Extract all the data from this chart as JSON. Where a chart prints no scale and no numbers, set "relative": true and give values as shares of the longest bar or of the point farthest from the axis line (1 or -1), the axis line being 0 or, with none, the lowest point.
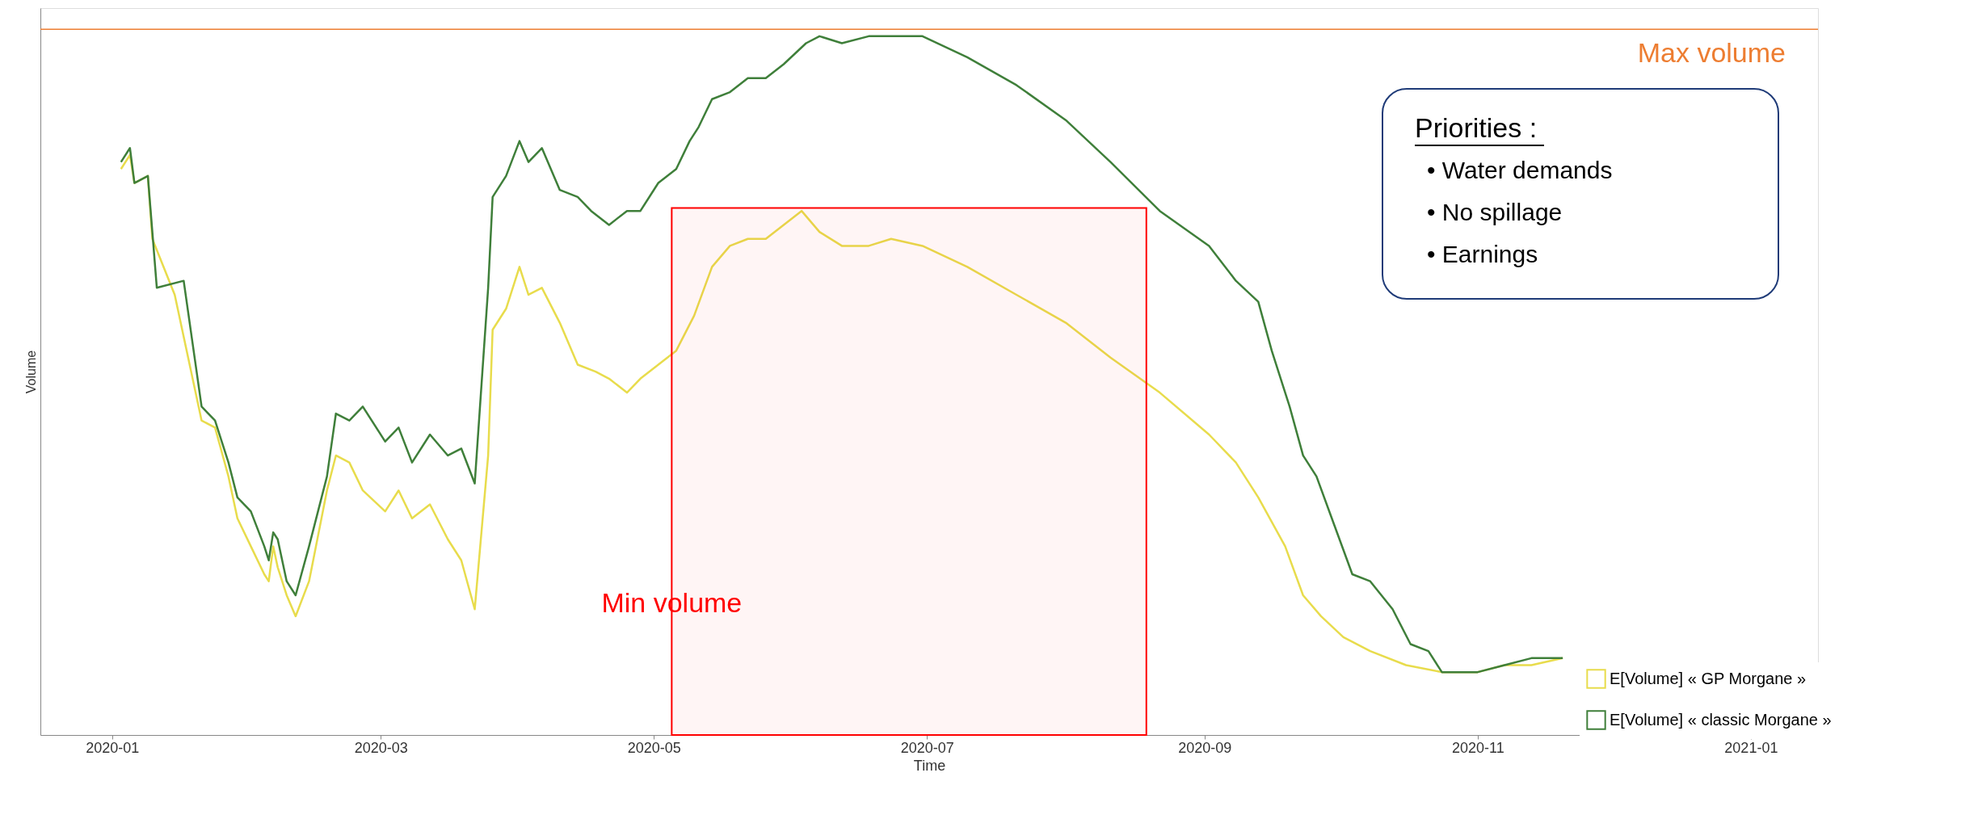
{
  "chart_data": {
    "type": "line",
    "xlabel": "Time",
    "ylabel": "Volume",
    "relative": true,
    "xlim": [
      "2019-12-16",
      "2021-01-16"
    ],
    "xticks": [
      "2020-01",
      "2020-03",
      "2020-05",
      "2020-07",
      "2020-09",
      "2020-11",
      "2021-01"
    ],
    "legend": "bottom right",
    "grid": false,
    "marker": "none",
    "line_style": "solid",
    "series": [
      {
        "name": "E[Volume] « GP Morgane »",
        "color": "#e8dc4c",
        "x": [
          "2020-01-03",
          "2020-01-05",
          "2020-01-06",
          "2020-01-09",
          "2020-01-10",
          "2020-01-15",
          "2020-01-21",
          "2020-01-24",
          "2020-01-27",
          "2020-01-29",
          "2020-02-01",
          "2020-02-04",
          "2020-02-05",
          "2020-02-06",
          "2020-02-07",
          "2020-02-09",
          "2020-02-11",
          "2020-02-14",
          "2020-02-18",
          "2020-02-20",
          "2020-02-23",
          "2020-02-26",
          "2020-03-02",
          "2020-03-05",
          "2020-03-08",
          "2020-03-12",
          "2020-03-16",
          "2020-03-19",
          "2020-03-22",
          "2020-03-25",
          "2020-03-26",
          "2020-03-29",
          "2020-04-01",
          "2020-04-03",
          "2020-04-06",
          "2020-04-10",
          "2020-04-14",
          "2020-04-18",
          "2020-04-21",
          "2020-04-25",
          "2020-04-28",
          "2020-05-02",
          "2020-05-06",
          "2020-05-10",
          "2020-05-14",
          "2020-05-18",
          "2020-05-22",
          "2020-05-26",
          "2020-05-30",
          "2020-06-03",
          "2020-06-07",
          "2020-06-12",
          "2020-06-18",
          "2020-06-23",
          "2020-06-30",
          "2020-07-10",
          "2020-07-21",
          "2020-08-01",
          "2020-08-11",
          "2020-08-22",
          "2020-09-02",
          "2020-09-08",
          "2020-09-13",
          "2020-09-19",
          "2020-09-23",
          "2020-09-27",
          "2020-10-02",
          "2020-10-08",
          "2020-10-16",
          "2020-10-24",
          "2020-11-01",
          "2020-11-07",
          "2020-11-13",
          "2020-11-20"
        ],
        "values": [
          0.81,
          0.83,
          0.79,
          0.8,
          0.71,
          0.63,
          0.45,
          0.44,
          0.37,
          0.31,
          0.27,
          0.23,
          0.22,
          0.27,
          0.24,
          0.2,
          0.17,
          0.22,
          0.35,
          0.4,
          0.39,
          0.35,
          0.32,
          0.35,
          0.31,
          0.33,
          0.28,
          0.25,
          0.18,
          0.4,
          0.58,
          0.61,
          0.67,
          0.63,
          0.64,
          0.59,
          0.53,
          0.52,
          0.51,
          0.49,
          0.51,
          0.53,
          0.55,
          0.6,
          0.67,
          0.7,
          0.71,
          0.71,
          0.73,
          0.75,
          0.72,
          0.7,
          0.7,
          0.71,
          0.7,
          0.67,
          0.63,
          0.59,
          0.54,
          0.49,
          0.43,
          0.39,
          0.34,
          0.27,
          0.2,
          0.17,
          0.14,
          0.12,
          0.1,
          0.09,
          0.09,
          0.1,
          0.1,
          0.11
        ]
      },
      {
        "name": "E[Volume] « classic Morgane »",
        "color": "#3f7f3a",
        "x": [
          "2020-01-03",
          "2020-01-05",
          "2020-01-06",
          "2020-01-09",
          "2020-01-10",
          "2020-01-11",
          "2020-01-17",
          "2020-01-21",
          "2020-01-24",
          "2020-01-27",
          "2020-01-29",
          "2020-02-01",
          "2020-02-04",
          "2020-02-05",
          "2020-02-06",
          "2020-02-07",
          "2020-02-09",
          "2020-02-11",
          "2020-02-14",
          "2020-02-18",
          "2020-02-20",
          "2020-02-23",
          "2020-02-26",
          "2020-03-02",
          "2020-03-05",
          "2020-03-08",
          "2020-03-12",
          "2020-03-16",
          "2020-03-19",
          "2020-03-22",
          "2020-03-25",
          "2020-03-26",
          "2020-03-29",
          "2020-04-01",
          "2020-04-03",
          "2020-04-06",
          "2020-04-10",
          "2020-04-14",
          "2020-04-17",
          "2020-04-21",
          "2020-04-25",
          "2020-04-28",
          "2020-05-02",
          "2020-05-06",
          "2020-05-09",
          "2020-05-11",
          "2020-05-14",
          "2020-05-18",
          "2020-05-22",
          "2020-05-26",
          "2020-05-30",
          "2020-06-04",
          "2020-06-07",
          "2020-06-12",
          "2020-06-18",
          "2020-06-23",
          "2020-06-30",
          "2020-07-10",
          "2020-07-21",
          "2020-08-01",
          "2020-08-11",
          "2020-08-22",
          "2020-09-02",
          "2020-09-08",
          "2020-09-13",
          "2020-09-16",
          "2020-09-19",
          "2020-09-20",
          "2020-09-23",
          "2020-09-26",
          "2020-09-30",
          "2020-10-04",
          "2020-10-08",
          "2020-10-13",
          "2020-10-17",
          "2020-10-21",
          "2020-10-24",
          "2020-10-28",
          "2020-11-01",
          "2020-11-07",
          "2020-11-13",
          "2020-11-20"
        ],
        "values": [
          0.82,
          0.84,
          0.79,
          0.8,
          0.72,
          0.64,
          0.65,
          0.47,
          0.45,
          0.39,
          0.34,
          0.32,
          0.27,
          0.25,
          0.29,
          0.28,
          0.22,
          0.2,
          0.27,
          0.37,
          0.46,
          0.45,
          0.47,
          0.42,
          0.44,
          0.39,
          0.43,
          0.4,
          0.41,
          0.36,
          0.64,
          0.77,
          0.8,
          0.85,
          0.82,
          0.84,
          0.78,
          0.77,
          0.75,
          0.73,
          0.75,
          0.75,
          0.79,
          0.81,
          0.85,
          0.87,
          0.91,
          0.92,
          0.94,
          0.94,
          0.96,
          0.99,
          1.0,
          0.99,
          1.0,
          1,
          1.0,
          0.97,
          0.93,
          0.88,
          0.82,
          0.75,
          0.7,
          0.65,
          0.62,
          0.55,
          0.49,
          0.47,
          0.4,
          0.37,
          0.3,
          0.23,
          0.22,
          0.18,
          0.13,
          0.12,
          0.09,
          0.09,
          0.09,
          0.1,
          0.11,
          0.11
        ]
      }
    ],
    "ref_lines": [
      {
        "axis": "y",
        "value": 1.01,
        "label": "Max volume",
        "color": "#ed7d31"
      }
    ],
    "bands": [
      {
        "axis": "x",
        "from": "2020-05-05",
        "to": "2020-08-19",
        "label": "Min volume",
        "color": "#ff0000"
      }
    ],
    "annotations": [
      "Priorities :",
      "• Water demands",
      "• No spillage",
      "• Earnings"
    ]
  }
}
